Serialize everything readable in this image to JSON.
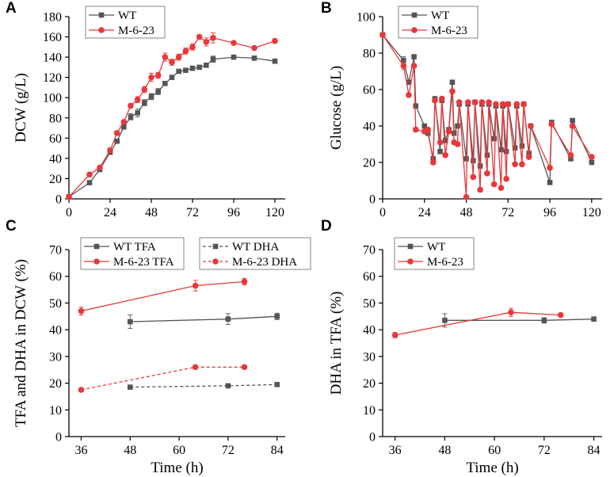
{
  "colors": {
    "wt": "#555555",
    "mut": "#e8383b",
    "axis": "#000000"
  },
  "chart_data": [
    {
      "panel": "A",
      "type": "line",
      "xlabel": "",
      "ylabel": "DCW (g/L)",
      "xlim": [
        0,
        126
      ],
      "ylim": [
        0,
        180
      ],
      "xticks": [
        0,
        24,
        48,
        72,
        96,
        120
      ],
      "yticks": [
        0,
        20,
        40,
        60,
        80,
        100,
        120,
        140,
        160,
        180
      ],
      "legend": {
        "position": "top-left",
        "entries": [
          "WT",
          "M-6-23"
        ]
      },
      "series": [
        {
          "name": "WT",
          "marker": "square",
          "dashed": false,
          "x": [
            0,
            12,
            18,
            24,
            28,
            32,
            36,
            40,
            44,
            48,
            52,
            56,
            60,
            64,
            68,
            72,
            76,
            80,
            84,
            96,
            108,
            120
          ],
          "y": [
            2,
            16,
            29,
            46,
            57,
            71,
            81,
            85,
            95,
            101,
            106,
            114,
            120,
            126,
            127,
            129,
            130,
            132,
            138,
            140,
            139,
            136
          ],
          "err": [
            0,
            1,
            1,
            1,
            1,
            1,
            3,
            4,
            3,
            3,
            3,
            2,
            2,
            2,
            2,
            2,
            2,
            2,
            3,
            1,
            1,
            1
          ]
        },
        {
          "name": "M-6-23",
          "marker": "circle",
          "dashed": false,
          "x": [
            0,
            12,
            18,
            24,
            28,
            32,
            36,
            40,
            44,
            48,
            52,
            56,
            60,
            64,
            68,
            72,
            76,
            80,
            84,
            96,
            108,
            120
          ],
          "y": [
            2,
            24,
            31,
            48,
            65,
            76,
            92,
            98,
            108,
            120,
            122,
            140,
            135,
            140,
            146,
            150,
            160,
            155,
            159,
            154,
            149,
            156
          ],
          "err": [
            0,
            1,
            1,
            2,
            2,
            2,
            2,
            3,
            3,
            4,
            3,
            4,
            3,
            3,
            3,
            3,
            2,
            4,
            5,
            1,
            1,
            2
          ]
        }
      ]
    },
    {
      "panel": "B",
      "type": "line",
      "xlabel": "",
      "ylabel": "Glucose (g/L)",
      "xlim": [
        0,
        126
      ],
      "ylim": [
        0,
        100
      ],
      "xticks": [
        0,
        24,
        48,
        72,
        96,
        120
      ],
      "yticks": [
        0,
        20,
        40,
        60,
        80,
        100
      ],
      "legend": {
        "position": "top-left",
        "entries": [
          "WT",
          "M-6-23"
        ]
      },
      "series": [
        {
          "name": "WT",
          "marker": "square",
          "dashed": false,
          "x": [
            0,
            12,
            15,
            18,
            19,
            24,
            26,
            29,
            30,
            33,
            34,
            36,
            38,
            40,
            41,
            43,
            44,
            48,
            49,
            52,
            53,
            56,
            57,
            60,
            61,
            64,
            65,
            68,
            69,
            71,
            72,
            76,
            77,
            80,
            81,
            84,
            85,
            96,
            97,
            108,
            109,
            120
          ],
          "y": [
            90,
            76,
            64,
            78,
            51,
            40,
            36,
            22,
            55,
            26,
            54,
            32,
            38,
            64,
            36,
            40,
            52,
            22,
            52,
            21,
            53,
            18,
            52,
            24,
            52,
            33,
            51,
            27,
            51,
            26,
            52,
            28,
            51,
            29,
            52,
            25,
            40,
            9,
            42,
            22,
            43,
            20
          ],
          "err": [
            0,
            2,
            1,
            1,
            1,
            1,
            1,
            1,
            1,
            1,
            1,
            1,
            1,
            1,
            1,
            1,
            1,
            1,
            1,
            1,
            1,
            1,
            1,
            1,
            1,
            1,
            1,
            1,
            1,
            1,
            1,
            1,
            1,
            1,
            1,
            1,
            1,
            1,
            1,
            1,
            1,
            1
          ]
        },
        {
          "name": "M-6-23",
          "marker": "circle",
          "dashed": false,
          "x": [
            0,
            12,
            15,
            18,
            19,
            24,
            26,
            29,
            30,
            33,
            34,
            36,
            38,
            40,
            41,
            43,
            44,
            48,
            49,
            52,
            53,
            56,
            57,
            60,
            61,
            64,
            65,
            68,
            69,
            71,
            72,
            76,
            77,
            80,
            81,
            84,
            85,
            96,
            97,
            108,
            109,
            120
          ],
          "y": [
            90,
            73,
            57,
            73,
            38,
            37,
            38,
            20,
            54,
            31,
            55,
            24,
            37,
            59,
            31,
            30,
            53,
            1,
            53,
            12,
            53,
            5,
            53,
            14,
            53,
            8,
            52,
            6,
            52,
            11,
            52,
            19,
            52,
            19,
            52,
            23,
            40,
            17,
            41,
            24,
            40,
            23
          ],
          "err": [
            0,
            2,
            1,
            1,
            1,
            1,
            1,
            1,
            1,
            1,
            1,
            1,
            1,
            1,
            1,
            1,
            1,
            1,
            1,
            1,
            1,
            1,
            1,
            1,
            1,
            1,
            1,
            1,
            1,
            1,
            1,
            1,
            1,
            1,
            1,
            1,
            1,
            1,
            1,
            1,
            1,
            1
          ]
        }
      ]
    },
    {
      "panel": "C",
      "type": "line",
      "xlabel": "Time (h)",
      "ylabel": "TFA and DHA in DCW (%)",
      "xlim": [
        33,
        86
      ],
      "ylim": [
        0,
        70
      ],
      "xticks": [
        36,
        48,
        60,
        72,
        84
      ],
      "yticks": [
        0,
        10,
        20,
        30,
        40,
        50,
        60,
        70
      ],
      "legend": {
        "position": "top",
        "entries": [
          "WT TFA",
          "M-6-23 TFA",
          "WT DHA",
          "M-6-23 DHA"
        ]
      },
      "series": [
        {
          "name": "WT TFA",
          "marker": "square",
          "dashed": false,
          "x": [
            48,
            72,
            84
          ],
          "y": [
            43,
            44,
            45
          ],
          "err": [
            2.5,
            2,
            1.2
          ]
        },
        {
          "name": "M-6-23 TFA",
          "marker": "circle",
          "dashed": false,
          "x": [
            36,
            64,
            76
          ],
          "y": [
            47,
            56.5,
            58
          ],
          "err": [
            1.5,
            2,
            1.2
          ]
        },
        {
          "name": "WT DHA",
          "marker": "square",
          "dashed": true,
          "x": [
            48,
            72,
            84
          ],
          "y": [
            18.5,
            19,
            19.5
          ],
          "err": [
            0.5,
            0.4,
            0.6
          ]
        },
        {
          "name": "M-6-23 DHA",
          "marker": "circle",
          "dashed": true,
          "x": [
            36,
            64,
            76
          ],
          "y": [
            17.5,
            26,
            26
          ],
          "err": [
            0.7,
            0.4,
            0.4
          ]
        }
      ]
    },
    {
      "panel": "D",
      "type": "line",
      "xlabel": "Time (h)",
      "ylabel": "DHA in TFA (%)",
      "xlim": [
        33,
        86
      ],
      "ylim": [
        0,
        70
      ],
      "xticks": [
        36,
        48,
        60,
        72,
        84
      ],
      "yticks": [
        0,
        10,
        20,
        30,
        40,
        50,
        60,
        70
      ],
      "legend": {
        "position": "top-left",
        "entries": [
          "WT",
          "M-6-23"
        ]
      },
      "series": [
        {
          "name": "WT",
          "marker": "square",
          "dashed": false,
          "x": [
            48,
            72,
            84
          ],
          "y": [
            43.5,
            43.5,
            44
          ],
          "err": [
            2.5,
            1,
            0.8
          ]
        },
        {
          "name": "M-6-23",
          "marker": "circle",
          "dashed": false,
          "x": [
            36,
            64,
            76
          ],
          "y": [
            38,
            46.5,
            45.5
          ],
          "err": [
            1,
            1.5,
            0.6
          ]
        }
      ]
    }
  ]
}
